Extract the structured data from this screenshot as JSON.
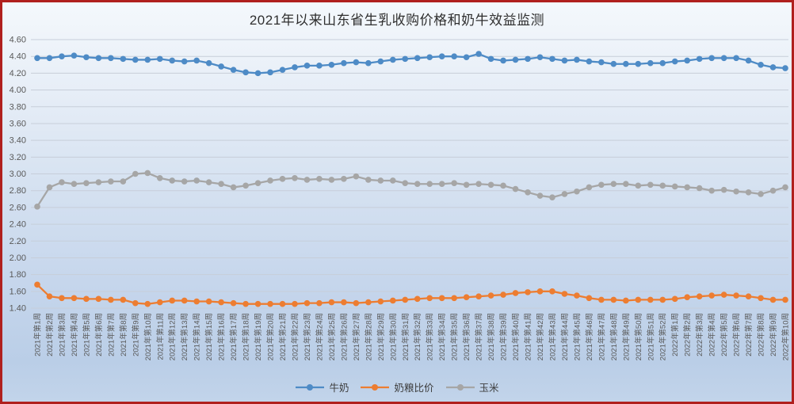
{
  "chart_data": {
    "type": "line",
    "title": "2021年以来山东省生乳收购价格和奶牛效益监测",
    "xlabel": "",
    "ylabel": "",
    "ylim": [
      1.4,
      4.6
    ],
    "ytick_step": 0.2,
    "grid": true,
    "legend_position": "bottom",
    "marker": "circle",
    "yticks": [
      "4.60",
      "4.40",
      "4.20",
      "4.00",
      "3.80",
      "3.60",
      "3.40",
      "3.20",
      "3.00",
      "2.80",
      "2.60",
      "2.40",
      "2.20",
      "2.00",
      "1.80",
      "1.60",
      "1.40"
    ],
    "categories": [
      "2021年第1周",
      "2021年第2周",
      "2021年第3周",
      "2021年第4周",
      "2021年第5周",
      "2021年第6周",
      "2021年第7周",
      "2021年第8周",
      "2021年第9周",
      "2021年第10周",
      "2021年第11周",
      "2021年第12周",
      "2021年第13周",
      "2021年第14周",
      "2021年第15周",
      "2021年第16周",
      "2021年第17周",
      "2021年第18周",
      "2021年第19周",
      "2021年第20周",
      "2021年第21周",
      "2021年第22周",
      "2021年第23周",
      "2021年第24周",
      "2021年第25周",
      "2021年第26周",
      "2021年第27周",
      "2021年第28周",
      "2021年第29周",
      "2021年第30周",
      "2021年第31周",
      "2021年第32周",
      "2021年第33周",
      "2021年第34周",
      "2021年第35周",
      "2021年第36周",
      "2021年第37周",
      "2021年第38周",
      "2021年第39周",
      "2021年第40周",
      "2021年第41周",
      "2021年第42周",
      "2021年第43周",
      "2021年第44周",
      "2021年第45周",
      "2021年第46周",
      "2021年第47周",
      "2021年第48周",
      "2021年第49周",
      "2021年第50周",
      "2021年第51周",
      "2021年第52周",
      "2022年第1周",
      "2022年第2周",
      "2022年第3周",
      "2022年第4周",
      "2022年第5周",
      "2022年第6周",
      "2022年第7周",
      "2022年第8周",
      "2022年第9周",
      "2022年第10周"
    ],
    "series": [
      {
        "name": "牛奶",
        "key": "milk",
        "color": "#4e8bc6",
        "values": [
          4.38,
          4.38,
          4.4,
          4.41,
          4.39,
          4.38,
          4.38,
          4.37,
          4.36,
          4.36,
          4.37,
          4.35,
          4.34,
          4.35,
          4.32,
          4.28,
          4.24,
          4.21,
          4.2,
          4.21,
          4.24,
          4.27,
          4.29,
          4.29,
          4.3,
          4.32,
          4.33,
          4.32,
          4.34,
          4.36,
          4.37,
          4.38,
          4.39,
          4.4,
          4.4,
          4.39,
          4.43,
          4.37,
          4.35,
          4.36,
          4.37,
          4.39,
          4.37,
          4.35,
          4.36,
          4.34,
          4.33,
          4.31,
          4.31,
          4.31,
          4.32,
          4.32,
          4.34,
          4.35,
          4.37,
          4.38,
          4.38,
          4.38,
          4.35,
          4.3,
          4.27,
          4.26
        ]
      },
      {
        "name": "奶粮比价",
        "key": "milk-grain-ratio",
        "color": "#ed7d31",
        "values": [
          1.68,
          1.54,
          1.52,
          1.52,
          1.51,
          1.51,
          1.5,
          1.5,
          1.46,
          1.45,
          1.47,
          1.49,
          1.49,
          1.48,
          1.48,
          1.47,
          1.46,
          1.45,
          1.45,
          1.45,
          1.45,
          1.45,
          1.46,
          1.46,
          1.47,
          1.47,
          1.46,
          1.47,
          1.48,
          1.49,
          1.5,
          1.51,
          1.52,
          1.52,
          1.52,
          1.53,
          1.54,
          1.55,
          1.56,
          1.58,
          1.59,
          1.6,
          1.6,
          1.57,
          1.55,
          1.52,
          1.5,
          1.5,
          1.49,
          1.5,
          1.5,
          1.5,
          1.51,
          1.53,
          1.54,
          1.55,
          1.56,
          1.55,
          1.54,
          1.52,
          1.5,
          1.5
        ]
      },
      {
        "name": "玉米",
        "key": "corn",
        "color": "#a6a6a6",
        "values": [
          2.61,
          2.84,
          2.9,
          2.88,
          2.89,
          2.9,
          2.91,
          2.91,
          3.0,
          3.01,
          2.95,
          2.92,
          2.91,
          2.92,
          2.9,
          2.88,
          2.84,
          2.86,
          2.89,
          2.92,
          2.94,
          2.95,
          2.93,
          2.94,
          2.93,
          2.94,
          2.97,
          2.93,
          2.92,
          2.92,
          2.89,
          2.88,
          2.88,
          2.88,
          2.89,
          2.87,
          2.88,
          2.87,
          2.86,
          2.82,
          2.78,
          2.74,
          2.72,
          2.76,
          2.79,
          2.84,
          2.87,
          2.88,
          2.88,
          2.86,
          2.87,
          2.86,
          2.85,
          2.84,
          2.83,
          2.8,
          2.81,
          2.79,
          2.78,
          2.76,
          2.8,
          2.84
        ]
      }
    ]
  },
  "colors": {
    "frame_border": "#b0201e",
    "gridline": "#c7ced9",
    "axis_tick_label": "#595959",
    "title_text": "#2f2f2f"
  }
}
